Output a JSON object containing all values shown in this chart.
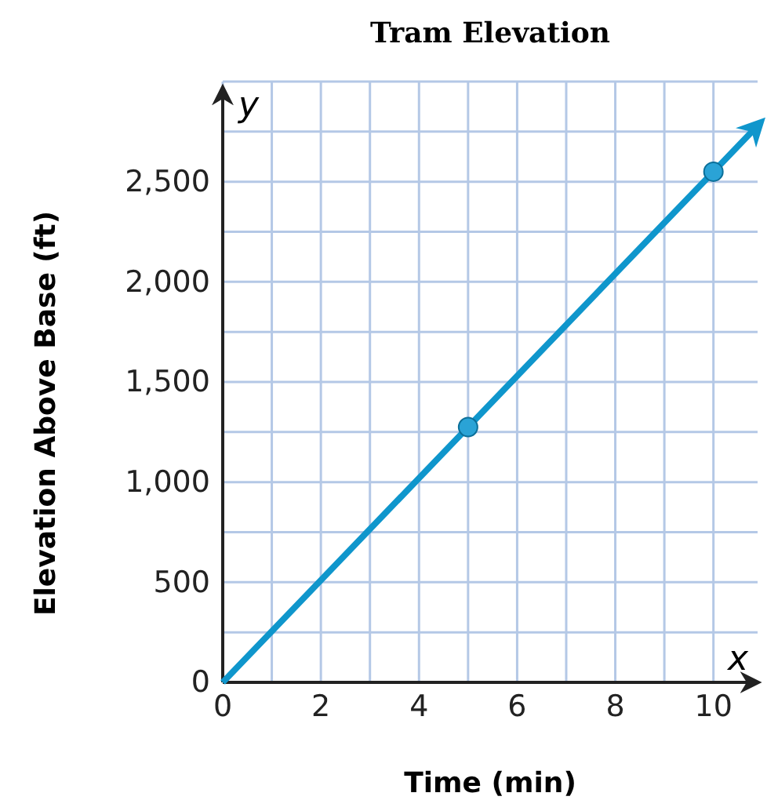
{
  "chart_data": {
    "type": "line",
    "title": "Tram Elevation",
    "xlabel": "Time (min)",
    "ylabel": "Elevation Above Base (ft)",
    "annotations": [
      "x",
      "y"
    ],
    "xlim": [
      0,
      10.9
    ],
    "xticks": [
      0,
      {
        "value": 1,
        "label": null
      },
      2,
      {
        "value": 3,
        "label": null
      },
      4,
      {
        "value": 5,
        "label": null
      },
      6,
      {
        "value": 7,
        "label": null
      },
      8,
      {
        "value": 9,
        "label": null
      },
      10
    ],
    "ylim": [
      0,
      3000
    ],
    "yticks": [
      0,
      {
        "value": 250,
        "label": null
      },
      {
        "value": 500,
        "label": "500"
      },
      {
        "value": 750,
        "label": null
      },
      {
        "value": 1000,
        "label": "1,000"
      },
      {
        "value": 1250,
        "label": null
      },
      {
        "value": 1500,
        "label": "1,500"
      },
      {
        "value": 1750,
        "label": null
      },
      {
        "value": 2000,
        "label": "2,000"
      },
      {
        "value": 2250,
        "label": null
      },
      {
        "value": 2500,
        "label": "2,500"
      },
      {
        "value": 2750,
        "label": null
      },
      {
        "value": 3000,
        "label": null
      }
    ],
    "grid": true,
    "series": [
      {
        "color": "#0f96cc",
        "x": [
          0,
          5,
          10,
          10.9
        ],
        "values": [
          0,
          1275,
          2550,
          2780
        ],
        "marker": "none"
      },
      {
        "type": "scatter",
        "color": "#2aa3d6",
        "x": [
          5,
          10
        ],
        "values": [
          1275,
          2550
        ],
        "marker": "circle"
      }
    ]
  }
}
